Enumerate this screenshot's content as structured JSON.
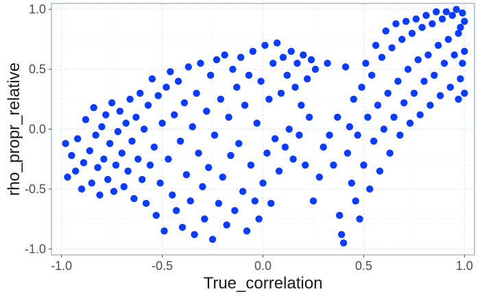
{
  "chart_data": {
    "type": "scatter",
    "title": "",
    "xlabel": "True_correlation",
    "ylabel": "rho_propr_relative",
    "xlim": [
      -1.05,
      1.05
    ],
    "ylim": [
      -1.05,
      1.05
    ],
    "x_ticks": [
      -1.0,
      -0.5,
      0.0,
      0.5,
      1.0
    ],
    "x_tick_labels": [
      "-1.0",
      "-0.5",
      "0.0",
      "0.5",
      "1.0"
    ],
    "y_ticks": [
      -1.0,
      -0.5,
      0.0,
      0.5,
      1.0
    ],
    "y_tick_labels": [
      "-1.0",
      "-0.5",
      "0.0",
      "0.5",
      "1.0"
    ],
    "grid": true,
    "legend": "none",
    "point_color": "#0a3cff",
    "series": [
      {
        "points": [
          [
            -0.98,
            -0.12
          ],
          [
            -0.97,
            -0.4
          ],
          [
            -0.95,
            -0.22
          ],
          [
            -0.93,
            -0.35
          ],
          [
            -0.92,
            -0.08
          ],
          [
            -0.9,
            -0.5
          ],
          [
            -0.89,
            -0.28
          ],
          [
            -0.88,
            0.08
          ],
          [
            -0.86,
            -0.18
          ],
          [
            -0.85,
            -0.45
          ],
          [
            -0.84,
            0.18
          ],
          [
            -0.83,
            -0.05
          ],
          [
            -0.82,
            -0.32
          ],
          [
            -0.81,
            -0.55
          ],
          [
            -0.8,
            0.02
          ],
          [
            -0.79,
            -0.25
          ],
          [
            -0.78,
            0.12
          ],
          [
            -0.77,
            -0.42
          ],
          [
            -0.76,
            -0.12
          ],
          [
            -0.75,
            0.22
          ],
          [
            -0.74,
            -0.52
          ],
          [
            -0.73,
            -0.3
          ],
          [
            -0.72,
            -0.02
          ],
          [
            -0.71,
            0.15
          ],
          [
            -0.7,
            -0.2
          ],
          [
            -0.69,
            -0.48
          ],
          [
            -0.68,
            0.05
          ],
          [
            -0.67,
            -0.35
          ],
          [
            -0.66,
            0.25
          ],
          [
            -0.65,
            -0.1
          ],
          [
            -0.64,
            -0.58
          ],
          [
            -0.63,
            0.1
          ],
          [
            -0.62,
            -0.25
          ],
          [
            -0.61,
            0.3
          ],
          [
            -0.6,
            -0.42
          ],
          [
            -0.59,
            0.0
          ],
          [
            -0.58,
            -0.62
          ],
          [
            -0.57,
            0.2
          ],
          [
            -0.56,
            -0.3
          ],
          [
            -0.55,
            0.42
          ],
          [
            -0.54,
            -0.15
          ],
          [
            -0.53,
            -0.72
          ],
          [
            -0.52,
            0.28
          ],
          [
            -0.51,
            -0.45
          ],
          [
            -0.5,
            0.05
          ],
          [
            -0.49,
            -0.85
          ],
          [
            -0.48,
            0.35
          ],
          [
            -0.47,
            -0.25
          ],
          [
            -0.46,
            0.48
          ],
          [
            -0.45,
            -0.55
          ],
          [
            -0.44,
            0.12
          ],
          [
            -0.43,
            -0.68
          ],
          [
            -0.42,
            0.4
          ],
          [
            -0.41,
            -0.1
          ],
          [
            -0.4,
            -0.82
          ],
          [
            -0.39,
            0.22
          ],
          [
            -0.38,
            -0.38
          ],
          [
            -0.37,
            0.52
          ],
          [
            -0.36,
            -0.6
          ],
          [
            -0.35,
            0.02
          ],
          [
            -0.34,
            -0.88
          ],
          [
            -0.33,
            0.3
          ],
          [
            -0.32,
            -0.2
          ],
          [
            -0.31,
            0.55
          ],
          [
            -0.3,
            -0.48
          ],
          [
            -0.29,
            -0.75
          ],
          [
            -0.28,
            0.15
          ],
          [
            -0.27,
            -0.32
          ],
          [
            -0.26,
            0.45
          ],
          [
            -0.25,
            -0.92
          ],
          [
            -0.24,
            -0.05
          ],
          [
            -0.23,
            0.58
          ],
          [
            -0.22,
            -0.62
          ],
          [
            -0.21,
            0.25
          ],
          [
            -0.2,
            -0.4
          ],
          [
            -0.19,
            0.62
          ],
          [
            -0.18,
            -0.8
          ],
          [
            -0.17,
            0.1
          ],
          [
            -0.16,
            -0.22
          ],
          [
            -0.15,
            0.5
          ],
          [
            -0.14,
            -0.68
          ],
          [
            -0.13,
            0.35
          ],
          [
            -0.12,
            -0.12
          ],
          [
            -0.11,
            0.6
          ],
          [
            -0.1,
            -0.52
          ],
          [
            -0.09,
            0.2
          ],
          [
            -0.08,
            -0.85
          ],
          [
            -0.07,
            0.45
          ],
          [
            -0.06,
            -0.3
          ],
          [
            -0.05,
            0.65
          ],
          [
            -0.04,
            -0.6
          ],
          [
            -0.03,
            0.05
          ],
          [
            -0.02,
            -0.75
          ],
          [
            -0.01,
            0.4
          ],
          [
            0.0,
            -0.45
          ],
          [
            0.01,
            0.7
          ],
          [
            0.02,
            -0.2
          ],
          [
            0.03,
            0.25
          ],
          [
            0.04,
            -0.62
          ],
          [
            0.05,
            0.55
          ],
          [
            0.06,
            -0.08
          ],
          [
            0.07,
            0.72
          ],
          [
            0.08,
            -0.35
          ],
          [
            0.09,
            0.3
          ],
          [
            0.1,
            0.6
          ],
          [
            0.11,
            -0.15
          ],
          [
            0.12,
            0.45
          ],
          [
            0.13,
            0.0
          ],
          [
            0.14,
            0.65
          ],
          [
            0.15,
            -0.25
          ],
          [
            0.16,
            0.35
          ],
          [
            0.17,
            0.55
          ],
          [
            0.18,
            -0.05
          ],
          [
            0.19,
            0.2
          ],
          [
            0.2,
            0.62
          ],
          [
            0.21,
            -0.3
          ],
          [
            0.22,
            0.42
          ],
          [
            0.23,
            0.1
          ],
          [
            0.24,
            0.58
          ],
          [
            0.25,
            -0.6
          ],
          [
            0.26,
            0.5
          ],
          [
            0.28,
            -0.4
          ],
          [
            0.3,
            -0.15
          ],
          [
            0.32,
            0.55
          ],
          [
            0.33,
            -0.05
          ],
          [
            0.35,
            -0.3
          ],
          [
            0.37,
            0.1
          ],
          [
            0.38,
            -0.72
          ],
          [
            0.39,
            -0.88
          ],
          [
            0.4,
            -0.95
          ],
          [
            0.41,
            0.52
          ],
          [
            0.42,
            -0.2
          ],
          [
            0.43,
            0.02
          ],
          [
            0.44,
            -0.45
          ],
          [
            0.45,
            0.25
          ],
          [
            0.46,
            -0.6
          ],
          [
            0.47,
            -0.05
          ],
          [
            0.48,
            -0.75
          ],
          [
            0.49,
            0.35
          ],
          [
            0.5,
            -0.3
          ],
          [
            0.51,
            0.55
          ],
          [
            0.52,
            0.1
          ],
          [
            0.53,
            -0.5
          ],
          [
            0.54,
            0.45
          ],
          [
            0.55,
            -0.1
          ],
          [
            0.56,
            0.7
          ],
          [
            0.57,
            0.2
          ],
          [
            0.58,
            -0.35
          ],
          [
            0.59,
            0.6
          ],
          [
            0.6,
            0.0
          ],
          [
            0.61,
            0.82
          ],
          [
            0.62,
            0.3
          ],
          [
            0.63,
            -0.2
          ],
          [
            0.64,
            0.68
          ],
          [
            0.65,
            0.1
          ],
          [
            0.66,
            0.88
          ],
          [
            0.67,
            0.4
          ],
          [
            0.68,
            -0.05
          ],
          [
            0.69,
            0.75
          ],
          [
            0.7,
            0.22
          ],
          [
            0.71,
            0.9
          ],
          [
            0.72,
            0.5
          ],
          [
            0.73,
            0.05
          ],
          [
            0.74,
            0.8
          ],
          [
            0.75,
            0.3
          ],
          [
            0.76,
            0.92
          ],
          [
            0.77,
            0.58
          ],
          [
            0.78,
            0.12
          ],
          [
            0.79,
            0.85
          ],
          [
            0.8,
            0.4
          ],
          [
            0.81,
            0.95
          ],
          [
            0.82,
            0.62
          ],
          [
            0.83,
            0.2
          ],
          [
            0.84,
            0.88
          ],
          [
            0.85,
            0.45
          ],
          [
            0.86,
            0.98
          ],
          [
            0.87,
            0.7
          ],
          [
            0.88,
            0.28
          ],
          [
            0.89,
            0.92
          ],
          [
            0.9,
            0.55
          ],
          [
            0.91,
            0.98
          ],
          [
            0.92,
            0.75
          ],
          [
            0.93,
            0.35
          ],
          [
            0.94,
            0.95
          ],
          [
            0.95,
            0.62
          ],
          [
            0.96,
            1.0
          ],
          [
            0.97,
            0.8
          ],
          [
            0.98,
            0.42
          ],
          [
            0.99,
            0.97
          ],
          [
            1.0,
            0.65
          ],
          [
            1.0,
            0.9
          ],
          [
            1.0,
            0.3
          ],
          [
            0.99,
            0.55
          ],
          [
            0.98,
            0.85
          ],
          [
            0.97,
            0.25
          ]
        ]
      }
    ]
  }
}
